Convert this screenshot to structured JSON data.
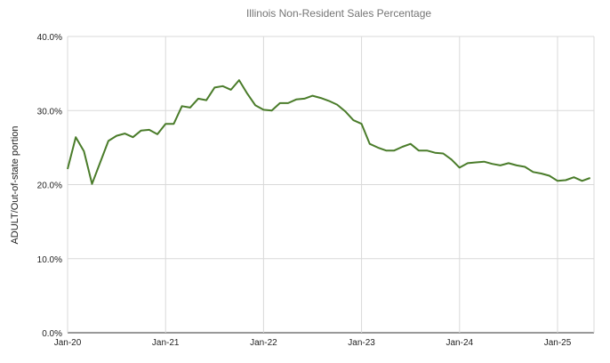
{
  "chart_data": {
    "type": "line",
    "title": "Illinois Non-Resident Sales Percentage",
    "xlabel": "",
    "ylabel": "ADULT/Out-of-state portion",
    "ylim": [
      0,
      40
    ],
    "yticks": [
      0,
      10,
      20,
      30,
      40
    ],
    "ytick_labels": [
      "0.0%",
      "10.0%",
      "20.0%",
      "30.0%",
      "40.0%"
    ],
    "xtick_labels": [
      "Jan-20",
      "Jan-21",
      "Jan-22",
      "Jan-23",
      "Jan-24",
      "Jan-25"
    ],
    "x_start": "2020-01",
    "x_frequency": "monthly",
    "grid": true,
    "line_color": "#4a7c2a",
    "series": [
      {
        "values": [
          22.1,
          26.4,
          24.5,
          20.1,
          23.0,
          25.9,
          26.6,
          26.9,
          26.4,
          27.3,
          27.4,
          26.8,
          28.2,
          28.2,
          30.6,
          30.4,
          31.6,
          31.4,
          33.1,
          33.3,
          32.8,
          34.1,
          32.3,
          30.7,
          30.1,
          30.0,
          31.0,
          31.0,
          31.5,
          31.6,
          32.0,
          31.7,
          31.3,
          30.8,
          29.9,
          28.7,
          28.2,
          25.5,
          25.0,
          24.6,
          24.6,
          25.1,
          25.5,
          24.6,
          24.6,
          24.3,
          24.2,
          23.4,
          22.3,
          22.9,
          23.0,
          23.1,
          22.8,
          22.6,
          22.9,
          22.6,
          22.4,
          21.7,
          21.5,
          21.2,
          20.5,
          20.6,
          21.0,
          20.5,
          20.9
        ]
      }
    ]
  }
}
